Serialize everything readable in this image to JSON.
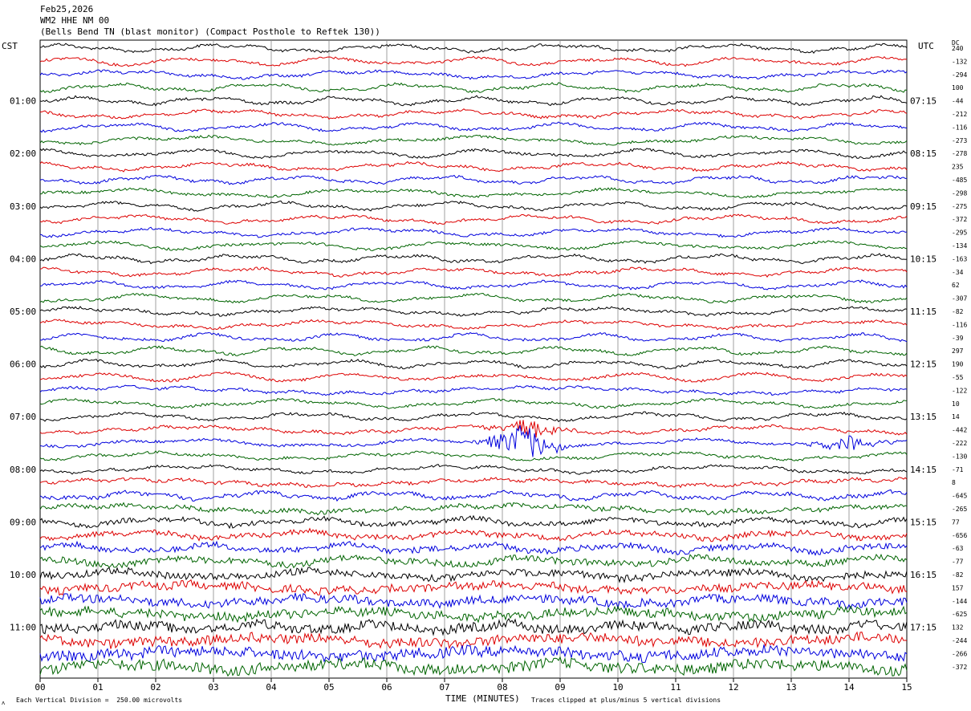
{
  "header": {
    "date": "Feb25,2026",
    "station": "WM2 HHE NM 00",
    "description": "(Bells Bend TN (blast monitor) (Compact Posthole to Reftek 130))"
  },
  "left_timezone": "CST",
  "right_timezone": "UTC",
  "dc_label": "DC",
  "footer": {
    "scale": "Each Vertical Division =  250.00 microvolts",
    "clip": "Traces clipped at plus/minus 5 vertical divisions"
  },
  "corner_mark": "ᴧ",
  "chart_data": {
    "type": "line",
    "xlabel": "TIME (MINUTES)",
    "xlim": [
      0,
      15
    ],
    "x_ticks": [
      "00",
      "01",
      "02",
      "03",
      "04",
      "05",
      "06",
      "07",
      "08",
      "09",
      "10",
      "11",
      "12",
      "13",
      "14",
      "15"
    ],
    "left_time_labels": [
      "01:00",
      "02:00",
      "03:00",
      "04:00",
      "05:00",
      "06:00",
      "07:00",
      "08:00",
      "09:00",
      "10:00",
      "11:00"
    ],
    "right_time_labels": [
      "07:15",
      "08:15",
      "09:15",
      "10:15",
      "11:15",
      "12:15",
      "13:15",
      "14:15",
      "15:15",
      "16:15",
      "17:15"
    ],
    "trace_colors": [
      "#000000",
      "#dd0000",
      "#0000dd",
      "#006400"
    ],
    "dc_offsets": [
      "240",
      "-132",
      "-294",
      "100",
      "-44",
      "-212",
      "-116",
      "-273",
      "-278",
      "235",
      "-485",
      "-298",
      "-275",
      "-372",
      "-295",
      "-134",
      "-163",
      "-34",
      "62",
      "-307",
      "-82",
      "-116",
      "-39",
      "297",
      "190",
      "-55",
      "-122",
      "10",
      "14",
      "-442",
      "-222",
      "-130",
      "-71",
      "8",
      "-645",
      "-265",
      "77",
      "-656",
      "-63",
      "-77",
      "-82",
      "157",
      "-144",
      "-625",
      "132",
      "-244",
      "-266",
      "-372"
    ],
    "events": [
      {
        "trace": 30,
        "minute": 8.35,
        "amplitude": "large"
      },
      {
        "trace": 30,
        "minute": 14.0,
        "amplitude": "medium"
      },
      {
        "trace": 29,
        "minute": 8.45,
        "amplitude": "medium"
      }
    ]
  }
}
